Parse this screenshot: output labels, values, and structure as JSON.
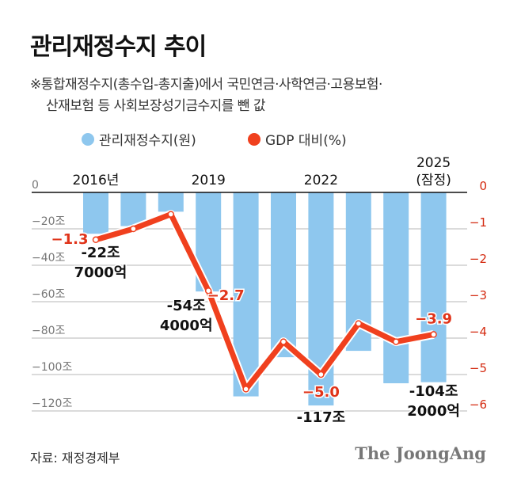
{
  "title": "관리재정수지 추이",
  "note_lines": [
    "※통합재정수지(총수입-총지출)에서 국민연금·사학연금·고용보험·",
    "산재보험 등 사회보장성기금수지를 뺀 값"
  ],
  "source": "자료: 재정경제부",
  "logo": "The JoongAng",
  "chart_data": {
    "type": "bar+line",
    "categories": [
      "2016",
      "2017",
      "2018",
      "2019",
      "2020",
      "2021",
      "2022",
      "2023",
      "2024",
      "2025"
    ],
    "x_tick_labels": [
      {
        "category": "2016",
        "label": "2016년"
      },
      {
        "category": "2019",
        "label": "2019"
      },
      {
        "category": "2022",
        "label": "2022"
      },
      {
        "category": "2025",
        "label": "2025\n(잠정)"
      }
    ],
    "series": [
      {
        "name": "관리재정수지(원)",
        "type": "bar",
        "axis": "left",
        "color": "#8ec7ee",
        "values": [
          -22.7,
          -18.5,
          -10.6,
          -54.4,
          -112.0,
          -90.5,
          -117.0,
          -87.0,
          -104.8,
          -104.2
        ]
      },
      {
        "name": "GDP 대비(%)",
        "type": "line",
        "axis": "right",
        "color": "#f0401e",
        "values": [
          -1.3,
          -1.0,
          -0.6,
          -2.7,
          -5.4,
          -4.1,
          -5.0,
          -3.6,
          -4.1,
          -3.9
        ]
      }
    ],
    "left_axis": {
      "ylim": [
        -120,
        0
      ],
      "ticks": [
        "0",
        "-20조",
        "-40조",
        "-60조",
        "-80조",
        "-100조",
        "-120조"
      ]
    },
    "right_axis": {
      "ylim": [
        -6,
        0
      ],
      "ticks": [
        "0",
        "-1",
        "-2",
        "-3",
        "-4",
        "-5",
        "-6"
      ],
      "color": "#d42a10"
    },
    "bar_labels": [
      {
        "category": "2016",
        "lines": [
          "-22조",
          "7000억"
        ]
      },
      {
        "category": "2019",
        "lines": [
          "-54조",
          "4000억"
        ]
      },
      {
        "category": "2022",
        "lines": [
          "-117조"
        ]
      },
      {
        "category": "2025",
        "lines": [
          "-104조",
          "2000억"
        ]
      }
    ],
    "line_labels": [
      {
        "category": "2016",
        "label": "-1.3"
      },
      {
        "category": "2019",
        "label": "-2.7"
      },
      {
        "category": "2022",
        "label": "-5.0"
      },
      {
        "category": "2025",
        "label": "-3.9"
      }
    ],
    "grid": true,
    "legend": "top"
  }
}
